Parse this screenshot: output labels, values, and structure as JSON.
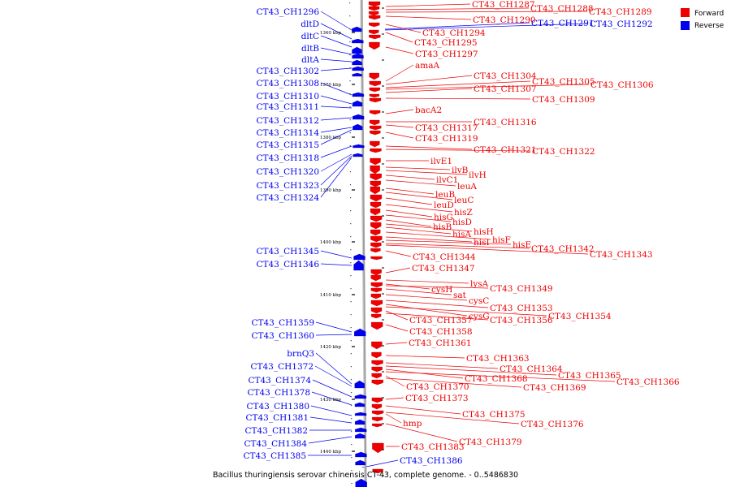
{
  "caption": "Bacillus thuringiensis serovar chinensis CT-43, complete genome. - 0..5486830",
  "legend": [
    {
      "label": "Forward",
      "color": "#ee0000"
    },
    {
      "label": "Reverse",
      "color": "#0000ee"
    }
  ],
  "colors": {
    "forward": "#ee0000",
    "reverse": "#0000ee",
    "backbone": "#999999"
  },
  "ticks": [
    "1360 kbp",
    "1370 kbp",
    "1380 kbp",
    "1390 kbp",
    "1400 kbp",
    "1410 kbp",
    "1420 kbp",
    "1430 kbp",
    "1440 kbp"
  ],
  "reverse_genes": [
    "CT43_CH1296",
    "dltD",
    "dltC",
    "dltB",
    "dltA",
    "CT43_CH1302",
    "CT43_CH1308",
    "CT43_CH1310",
    "CT43_CH1311",
    "CT43_CH1312",
    "CT43_CH1314",
    "CT43_CH1315",
    "CT43_CH1318",
    "CT43_CH1320",
    "CT43_CH1323",
    "CT43_CH1324",
    "CT43_CH1345",
    "CT43_CH1346",
    "CT43_CH1359",
    "CT43_CH1360",
    "brnQ3",
    "CT43_CH1372",
    "CT43_CH1374",
    "CT43_CH1378",
    "CT43_CH1380",
    "CT43_CH1381",
    "CT43_CH1382",
    "CT43_CH1384",
    "CT43_CH1385",
    "CT43_CH1386",
    "CT43_CH1291",
    "CT43_CH1292"
  ],
  "forward_genes": [
    "CT43_CH1287",
    "CT43_CH1288",
    "CT43_CH1289",
    "CT43_CH1290",
    "CT43_CH1294",
    "CT43_CH1295",
    "CT43_CH1297",
    "amaA",
    "CT43_CH1304",
    "CT43_CH1305",
    "CT43_CH1306",
    "CT43_CH1307",
    "CT43_CH1309",
    "bacA2",
    "CT43_CH1316",
    "CT43_CH1317",
    "CT43_CH1319",
    "CT43_CH1321",
    "CT43_CH1322",
    "ilvE1",
    "ilvB",
    "ilvH",
    "ilvC1",
    "leuA",
    "leuB",
    "leuC",
    "leuD",
    "hisZ",
    "hisG",
    "hisD",
    "hisB",
    "hisH",
    "hisA",
    "hisF",
    "hisI",
    "hisE",
    "CT43_CH1342",
    "CT43_CH1343",
    "CT43_CH1344",
    "CT43_CH1347",
    "lysA",
    "cysH",
    "CT43_CH1349",
    "sat",
    "cysC",
    "CT43_CH1353",
    "cysG",
    "CT43_CH1354",
    "CT43_CH1357",
    "CT43_CH1356",
    "CT43_CH1358",
    "CT43_CH1361",
    "CT43_CH1363",
    "CT43_CH1364",
    "CT43_CH1365",
    "CT43_CH1368",
    "CT43_CH1366",
    "CT43_CH1370",
    "CT43_CH1369",
    "CT43_CH1373",
    "CT43_CH1375",
    "hmp",
    "CT43_CH1376",
    "CT43_CH1379",
    "CT43_CH1383"
  ]
}
